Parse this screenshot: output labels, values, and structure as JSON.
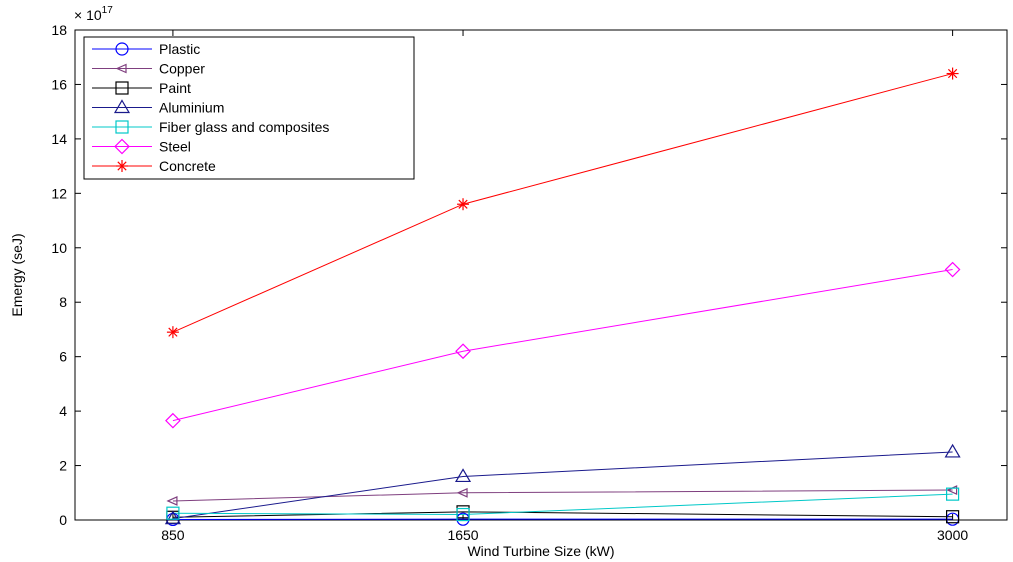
{
  "chart_data": {
    "type": "line",
    "x": [
      850,
      1650,
      3000
    ],
    "xticks": [
      "850",
      "1650",
      "3000"
    ],
    "xlim": [
      580,
      3150
    ],
    "ylim": [
      0,
      18
    ],
    "yticks": [
      "0",
      "2",
      "4",
      "6",
      "8",
      "10",
      "12",
      "14",
      "16",
      "18"
    ],
    "y_exponent_label": "× 10",
    "y_exponent": "17",
    "xlabel": "Wind Turbine Size (kW)",
    "ylabel": "Emergy (seJ)",
    "grid": false,
    "legend_position": "top-left",
    "series": [
      {
        "name": "Plastic",
        "values": [
          0.02,
          0.03,
          0.03
        ],
        "color": "#0000ff",
        "marker": "circle"
      },
      {
        "name": "Copper",
        "values": [
          0.7,
          1.0,
          1.1
        ],
        "color": "#7f3f7f",
        "marker": "triangle-left"
      },
      {
        "name": "Paint",
        "values": [
          0.1,
          0.3,
          0.12
        ],
        "color": "#000000",
        "marker": "square"
      },
      {
        "name": "Aluminium",
        "values": [
          0.05,
          1.6,
          2.5
        ],
        "color": "#1a1a8c",
        "marker": "triangle-up"
      },
      {
        "name": "Fiber glass and composites",
        "values": [
          0.25,
          0.2,
          0.95
        ],
        "color": "#00c8c8",
        "marker": "square"
      },
      {
        "name": "Steel",
        "values": [
          3.65,
          6.2,
          9.2
        ],
        "color": "#ff00ff",
        "marker": "diamond"
      },
      {
        "name": "Concrete",
        "values": [
          6.9,
          11.6,
          16.4
        ],
        "color": "#ff0000",
        "marker": "asterisk"
      }
    ]
  }
}
